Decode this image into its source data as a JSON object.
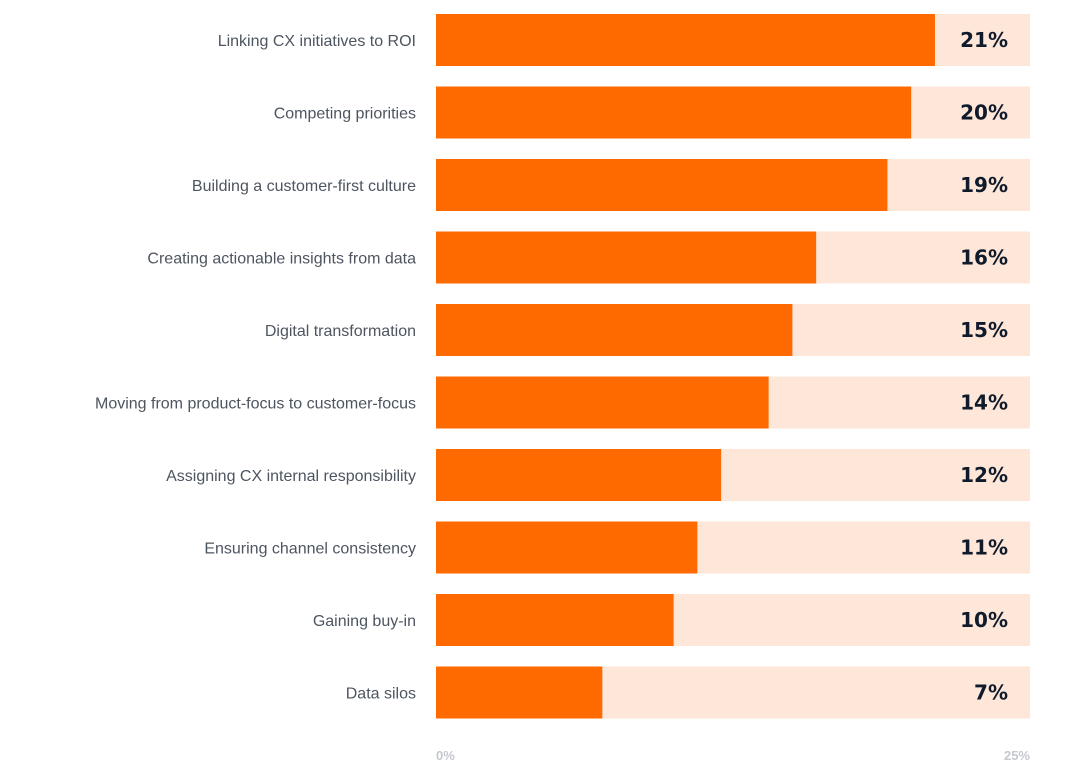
{
  "chart_data": {
    "type": "bar",
    "orientation": "horizontal",
    "categories": [
      "Linking CX initiatives to ROI",
      "Competing priorities",
      "Building a customer-first culture",
      "Creating actionable insights from data",
      "Digital transformation",
      "Moving from product-focus to customer-focus",
      "Assigning CX internal responsibility",
      "Ensuring channel consistency",
      "Gaining buy-in",
      "Data silos"
    ],
    "values": [
      21,
      20,
      19,
      16,
      15,
      14,
      12,
      11,
      10,
      7
    ],
    "value_labels": [
      "21%",
      "20%",
      "19%",
      "16%",
      "15%",
      "14%",
      "12%",
      "11%",
      "10%",
      "7%"
    ],
    "xlim": [
      0,
      25
    ],
    "xticks": [
      "0%",
      "25%"
    ],
    "grid": false,
    "legend": "none",
    "colors": {
      "bar": "#ff6a00",
      "track": "#fee6d8",
      "category_text": "#4d5560",
      "value_text": "#0f1a2b",
      "tick_text": "#c4c8cf"
    }
  }
}
